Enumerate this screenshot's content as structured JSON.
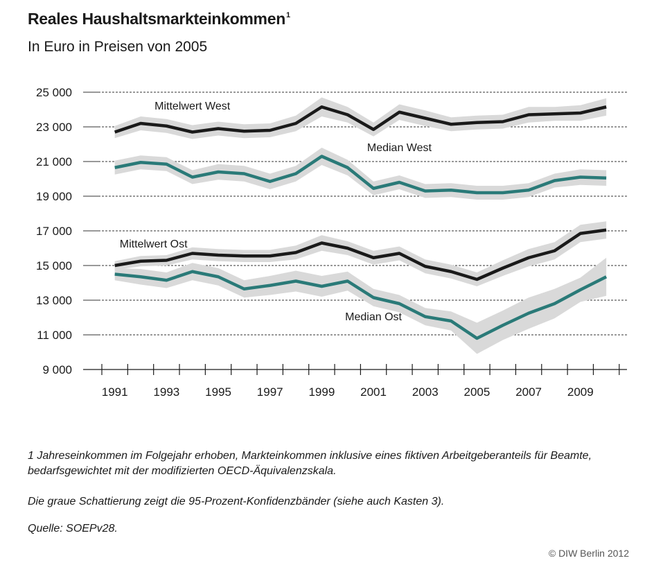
{
  "title": "Reales Haushaltsmarkteinkommen",
  "title_footnote_mark": "1",
  "subtitle": "In Euro in Preisen von 2005",
  "footnote": "1 Jahreseinkommen im Folgejahr erhoben, Markteinkommen inklusive eines fiktiven Arbeitgeberanteils für Beamte, bedarfsgewichtet mit der modifizierten OECD-Äquivalenzskala.",
  "shading_note": "Die graue Schattierung zeigt die 95-Prozent-Konfidenzbänder (siehe auch Kasten 3).",
  "source": "Quelle: SOEPv28.",
  "copyright": "© DIW Berlin 2012",
  "colors": {
    "line_dark": "#1a1a1a",
    "line_teal": "#2a7a78",
    "band": "#d9d9d9",
    "grid": "#333333"
  },
  "chart_data": {
    "type": "line",
    "x": [
      1991,
      1992,
      1993,
      1994,
      1995,
      1996,
      1997,
      1998,
      1999,
      2000,
      2001,
      2002,
      2003,
      2004,
      2005,
      2006,
      2007,
      2008,
      2009,
      2010
    ],
    "xticks": [
      1991,
      1993,
      1995,
      1997,
      1999,
      2001,
      2003,
      2005,
      2007,
      2009
    ],
    "xtick_labels": [
      "1991",
      "1993",
      "1995",
      "1997",
      "1999",
      "2001",
      "2003",
      "2005",
      "2007",
      "2009"
    ],
    "yticks": [
      9000,
      11000,
      13000,
      15000,
      17000,
      19000,
      21000,
      23000,
      25000
    ],
    "ytick_labels": [
      "9 000",
      "11 000",
      "13 000",
      "15 000",
      "17 000",
      "19 000",
      "21 000",
      "23 000",
      "25 000"
    ],
    "ylim": [
      9000,
      25000
    ],
    "xlim": [
      1990.5,
      2010.8
    ],
    "grid": "horizontal dashed",
    "confidence_band": "95%",
    "series": [
      {
        "name": "Mittelwert West",
        "color": "#1a1a1a",
        "values": [
          22700,
          23200,
          23050,
          22700,
          22900,
          22750,
          22800,
          23200,
          24150,
          23700,
          22850,
          23850,
          23500,
          23150,
          23250,
          23300,
          23700,
          23750,
          23800,
          24150
        ],
        "lower": [
          22350,
          22800,
          22650,
          22300,
          22500,
          22350,
          22400,
          22750,
          23600,
          23250,
          22450,
          23400,
          23050,
          22750,
          22850,
          22900,
          23250,
          23350,
          23350,
          23650
        ],
        "upper": [
          23050,
          23600,
          23450,
          23100,
          23300,
          23150,
          23200,
          23650,
          24700,
          24150,
          23250,
          24300,
          23950,
          23550,
          23650,
          23700,
          24150,
          24150,
          24250,
          24650
        ]
      },
      {
        "name": "Median West",
        "color": "#2a7a78",
        "values": [
          20650,
          20950,
          20850,
          20100,
          20400,
          20300,
          19850,
          20300,
          21300,
          20650,
          19450,
          19800,
          19300,
          19350,
          19200,
          19200,
          19350,
          19900,
          20100,
          20050
        ],
        "lower": [
          20250,
          20550,
          20450,
          19700,
          19950,
          19850,
          19400,
          19850,
          20800,
          20200,
          19050,
          19400,
          18900,
          18950,
          18800,
          18800,
          18950,
          19500,
          19650,
          19600
        ],
        "upper": [
          21050,
          21350,
          21250,
          20500,
          20850,
          20750,
          20300,
          20750,
          21800,
          21100,
          19850,
          20200,
          19700,
          19750,
          19600,
          19600,
          19750,
          20300,
          20550,
          20500
        ]
      },
      {
        "name": "Mittelwert Ost",
        "color": "#1a1a1a",
        "values": [
          15000,
          15250,
          15300,
          15700,
          15600,
          15550,
          15550,
          15750,
          16300,
          16000,
          15450,
          15700,
          14950,
          14650,
          14200,
          14850,
          15450,
          15850,
          16850,
          17050
        ],
        "lower": [
          14750,
          14950,
          15000,
          15350,
          15250,
          15200,
          15200,
          15350,
          15850,
          15600,
          15050,
          15300,
          14550,
          14250,
          13800,
          14400,
          14950,
          15350,
          16350,
          16550
        ],
        "upper": [
          15250,
          15550,
          15600,
          16050,
          15950,
          15900,
          15900,
          16150,
          16750,
          16400,
          15850,
          16100,
          15350,
          15050,
          14600,
          15300,
          15950,
          16350,
          17350,
          17550
        ]
      },
      {
        "name": "Median Ost",
        "color": "#2a7a78",
        "values": [
          14500,
          14350,
          14150,
          14650,
          14350,
          13650,
          13850,
          14100,
          13800,
          14100,
          13150,
          12800,
          12050,
          11800,
          10800,
          11550,
          12250,
          12800,
          13600,
          14350
        ],
        "lower": [
          14150,
          13900,
          13700,
          14150,
          13850,
          13150,
          13300,
          13500,
          13200,
          13550,
          12650,
          12300,
          11550,
          11250,
          9900,
          10700,
          11350,
          11950,
          12900,
          13250
        ],
        "upper": [
          14850,
          14800,
          14600,
          15150,
          14850,
          14150,
          14400,
          14700,
          14400,
          14650,
          13650,
          13300,
          12550,
          12350,
          11700,
          12400,
          13150,
          13650,
          14300,
          15450
        ]
      }
    ],
    "annotations": [
      {
        "text": "Mittelwert West",
        "x": 1994.0,
        "y": 24000
      },
      {
        "text": "Median West",
        "x": 2002.0,
        "y": 21600
      },
      {
        "text": "Mittelwert Ost",
        "x": 1992.5,
        "y": 16050
      },
      {
        "text": "Median Ost",
        "x": 2001.0,
        "y": 11850
      }
    ]
  }
}
